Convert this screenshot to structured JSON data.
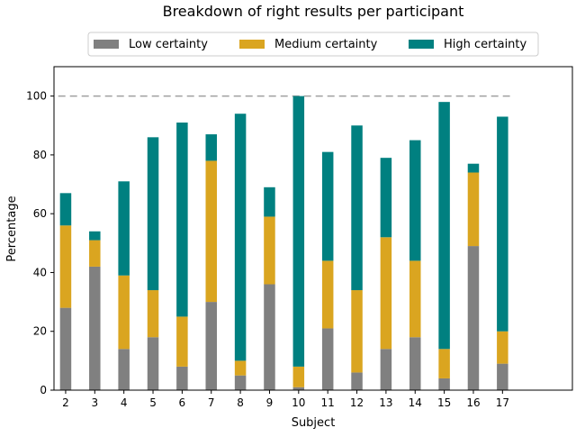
{
  "chart_data": {
    "type": "bar",
    "stacked": true,
    "title": "Breakdown of right results per participant",
    "xlabel": "Subject",
    "ylabel": "Percentage",
    "categories": [
      "2",
      "3",
      "4",
      "5",
      "6",
      "7",
      "8",
      "9",
      "10",
      "11",
      "12",
      "13",
      "14",
      "15",
      "16",
      "17"
    ],
    "series": [
      {
        "name": "Low certainty",
        "color": "#808080",
        "values": [
          28,
          42,
          14,
          18,
          8,
          30,
          5,
          36,
          1,
          21,
          6,
          14,
          18,
          4,
          49,
          9
        ]
      },
      {
        "name": "Medium certainty",
        "color": "#DAA520",
        "values": [
          28,
          9,
          25,
          16,
          17,
          48,
          5,
          23,
          7,
          23,
          28,
          38,
          26,
          10,
          25,
          11
        ]
      },
      {
        "name": "High certainty",
        "color": "#008080",
        "values": [
          11,
          3,
          32,
          52,
          66,
          9,
          84,
          10,
          92,
          37,
          56,
          27,
          41,
          84,
          3,
          73
        ]
      }
    ],
    "reference_line": {
      "y": 100,
      "style": "dashed",
      "color": "#A0A0A0"
    },
    "ylim": [
      0,
      110
    ],
    "xlim": [
      0.6,
      18.4
    ],
    "yticks": [
      0,
      20,
      40,
      60,
      80,
      100
    ],
    "legend": "top-center",
    "grid": false
  }
}
